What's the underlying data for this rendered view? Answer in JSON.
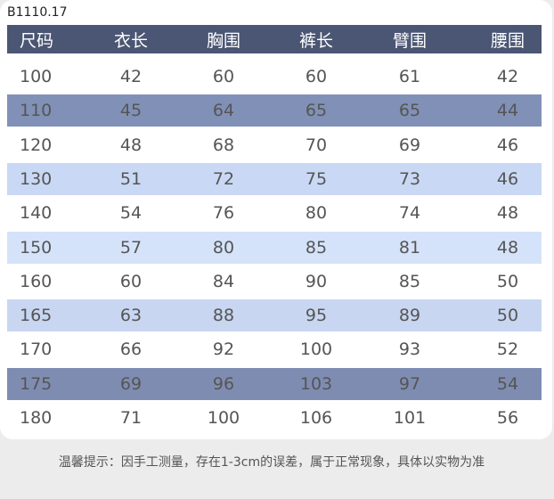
{
  "header": {
    "label": "B1110.17"
  },
  "table": {
    "columns": [
      "尺码",
      "衣长",
      "胸围",
      "裤长",
      "臂围",
      "腰围"
    ],
    "rows": [
      [
        "100",
        "42",
        "60",
        "60",
        "61",
        "42"
      ],
      [
        "110",
        "45",
        "64",
        "65",
        "65",
        "44"
      ],
      [
        "120",
        "48",
        "68",
        "70",
        "69",
        "46"
      ],
      [
        "130",
        "51",
        "72",
        "75",
        "73",
        "46"
      ],
      [
        "140",
        "54",
        "76",
        "80",
        "74",
        "48"
      ],
      [
        "150",
        "57",
        "80",
        "85",
        "81",
        "48"
      ],
      [
        "160",
        "60",
        "84",
        "90",
        "85",
        "50"
      ],
      [
        "165",
        "63",
        "88",
        "95",
        "89",
        "50"
      ],
      [
        "170",
        "66",
        "92",
        "100",
        "93",
        "52"
      ],
      [
        "175",
        "69",
        "96",
        "103",
        "97",
        "54"
      ],
      [
        "180",
        "71",
        "100",
        "106",
        "101",
        "56"
      ]
    ]
  },
  "footer": {
    "note": "温馨提示：因手工测量，存在1-3cm的误差，属于正常现象，具体以实物为准"
  }
}
